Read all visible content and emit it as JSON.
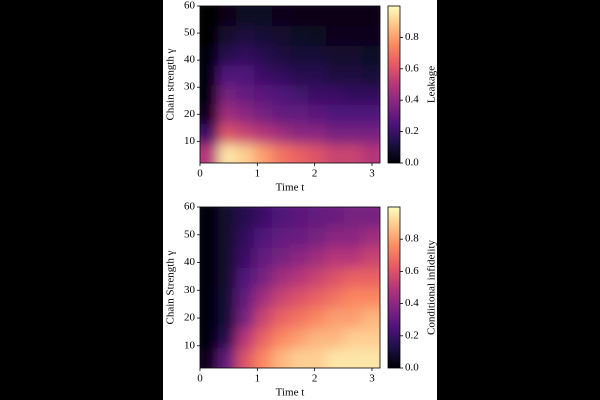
{
  "chart_data": [
    {
      "type": "heatmap",
      "xlabel": "Time t",
      "ylabel": "Chain strength γ",
      "colorbar_label": "Leakage",
      "xlim": [
        0,
        3.14
      ],
      "ylim": [
        2,
        60
      ],
      "zlim": [
        0,
        1
      ],
      "xticks": [
        0,
        1,
        2,
        3
      ],
      "yticks": [
        10,
        20,
        30,
        40,
        50,
        60
      ],
      "zticks": [
        {
          "value": 0,
          "label": "0.0"
        },
        {
          "value": 0.2,
          "label": "0.2"
        },
        {
          "value": 0.4,
          "label": "0.4"
        },
        {
          "value": 0.6,
          "label": "0.6"
        },
        {
          "value": 0.8,
          "label": "0.8"
        }
      ],
      "colormap": [
        "#000004",
        "#1c1044",
        "#4f127b",
        "#812581",
        "#b5367a",
        "#e55964",
        "#fb8761",
        "#fec287",
        "#fcfdbf"
      ],
      "x": [
        0.157,
        0.471,
        0.785,
        1.099,
        1.413,
        1.727,
        2.041,
        2.355,
        2.669,
        2.983
      ],
      "y": [
        5.6,
        12.9,
        20.1,
        27.4,
        34.6,
        41.9,
        49.1,
        56.4
      ],
      "z": [
        [
          0.5,
          0.95,
          0.9,
          0.8,
          0.7,
          0.65,
          0.6,
          0.55,
          0.55,
          0.5
        ],
        [
          0.2,
          0.6,
          0.55,
          0.5,
          0.45,
          0.4,
          0.4,
          0.35,
          0.35,
          0.35
        ],
        [
          0.05,
          0.45,
          0.4,
          0.35,
          0.3,
          0.3,
          0.28,
          0.25,
          0.25,
          0.25
        ],
        [
          0.02,
          0.35,
          0.3,
          0.28,
          0.25,
          0.22,
          0.2,
          0.2,
          0.18,
          0.18
        ],
        [
          0.01,
          0.25,
          0.25,
          0.2,
          0.18,
          0.15,
          0.15,
          0.12,
          0.12,
          0.1
        ],
        [
          0.01,
          0.15,
          0.18,
          0.15,
          0.12,
          0.1,
          0.1,
          0.08,
          0.08,
          0.07
        ],
        [
          0,
          0.08,
          0.12,
          0.1,
          0.08,
          0.07,
          0.06,
          0.05,
          0.05,
          0.05
        ],
        [
          0,
          0.03,
          0.06,
          0.06,
          0.05,
          0.04,
          0.04,
          0.03,
          0.03,
          0.03
        ]
      ]
    },
    {
      "type": "heatmap",
      "xlabel": "Time t",
      "ylabel": "Chain Strength γ",
      "colorbar_label": "Conditional infidelity",
      "xlim": [
        0,
        3.14
      ],
      "ylim": [
        2,
        60
      ],
      "zlim": [
        0,
        1
      ],
      "xticks": [
        0,
        1,
        2,
        3
      ],
      "yticks": [
        10,
        20,
        30,
        40,
        50,
        60
      ],
      "zticks": [
        {
          "value": 0,
          "label": "0.0"
        },
        {
          "value": 0.2,
          "label": "0.2"
        },
        {
          "value": 0.4,
          "label": "0.4"
        },
        {
          "value": 0.6,
          "label": "0.6"
        },
        {
          "value": 0.8,
          "label": "0.8"
        }
      ],
      "colormap": [
        "#000004",
        "#1c1044",
        "#4f127b",
        "#812581",
        "#b5367a",
        "#e55964",
        "#fb8761",
        "#fec287",
        "#fcfdbf"
      ],
      "x": [
        0.157,
        0.471,
        0.785,
        1.099,
        1.413,
        1.727,
        2.041,
        2.355,
        2.669,
        2.983
      ],
      "y": [
        5.6,
        12.9,
        20.1,
        27.4,
        34.6,
        41.9,
        49.1,
        56.4
      ],
      "z": [
        [
          0.05,
          0.3,
          0.6,
          0.75,
          0.85,
          0.9,
          0.9,
          0.95,
          0.95,
          0.95
        ],
        [
          0.02,
          0.15,
          0.5,
          0.65,
          0.75,
          0.8,
          0.85,
          0.85,
          0.9,
          0.9
        ],
        [
          0.02,
          0.1,
          0.35,
          0.55,
          0.65,
          0.7,
          0.75,
          0.8,
          0.8,
          0.85
        ],
        [
          0.02,
          0.1,
          0.3,
          0.45,
          0.55,
          0.6,
          0.65,
          0.7,
          0.75,
          0.75
        ],
        [
          0.02,
          0.08,
          0.25,
          0.35,
          0.45,
          0.5,
          0.55,
          0.6,
          0.65,
          0.65
        ],
        [
          0.02,
          0.08,
          0.2,
          0.3,
          0.35,
          0.4,
          0.45,
          0.5,
          0.5,
          0.55
        ],
        [
          0.02,
          0.08,
          0.18,
          0.25,
          0.3,
          0.32,
          0.35,
          0.4,
          0.4,
          0.45
        ],
        [
          0.02,
          0.08,
          0.15,
          0.2,
          0.25,
          0.28,
          0.3,
          0.32,
          0.35,
          0.35
        ]
      ]
    }
  ]
}
